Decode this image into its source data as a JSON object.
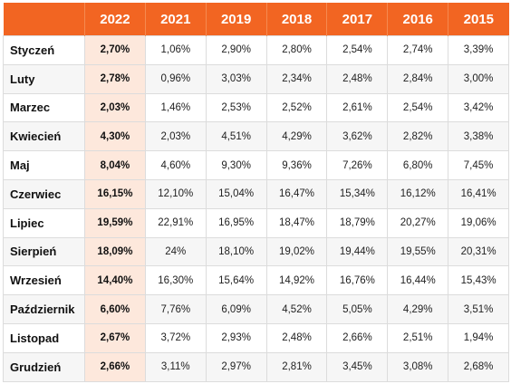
{
  "table": {
    "headers": [
      "",
      "2022",
      "2021",
      "2019",
      "2018",
      "2017",
      "2016",
      "2015"
    ],
    "rows": [
      {
        "month": "Styczeń",
        "values": [
          "2,70%",
          "1,06%",
          "2,90%",
          "2,80%",
          "2,54%",
          "2,74%",
          "3,39%"
        ]
      },
      {
        "month": "Luty",
        "values": [
          "2,78%",
          "0,96%",
          "3,03%",
          "2,34%",
          "2,48%",
          "2,84%",
          "3,00%"
        ]
      },
      {
        "month": "Marzec",
        "values": [
          "2,03%",
          "1,46%",
          "2,53%",
          "2,52%",
          "2,61%",
          "2,54%",
          "3,42%"
        ]
      },
      {
        "month": "Kwiecień",
        "values": [
          "4,30%",
          "2,03%",
          "4,51%",
          "4,29%",
          "3,62%",
          "2,82%",
          "3,38%"
        ]
      },
      {
        "month": "Maj",
        "values": [
          "8,04%",
          "4,60%",
          "9,30%",
          "9,36%",
          "7,26%",
          "6,80%",
          "7,45%"
        ]
      },
      {
        "month": "Czerwiec",
        "values": [
          "16,15%",
          "12,10%",
          "15,04%",
          "16,47%",
          "15,34%",
          "16,12%",
          "16,41%"
        ]
      },
      {
        "month": "Lipiec",
        "values": [
          "19,59%",
          "22,91%",
          "16,95%",
          "18,47%",
          "18,79%",
          "20,27%",
          "19,06%"
        ]
      },
      {
        "month": "Sierpień",
        "values": [
          "18,09%",
          "24%",
          "18,10%",
          "19,02%",
          "19,44%",
          "19,55%",
          "20,31%"
        ]
      },
      {
        "month": "Wrzesień",
        "values": [
          "14,40%",
          "16,30%",
          "15,64%",
          "14,92%",
          "16,76%",
          "16,44%",
          "15,43%"
        ]
      },
      {
        "month": "Październik",
        "values": [
          "6,60%",
          "7,76%",
          "6,09%",
          "4,52%",
          "5,05%",
          "4,29%",
          "3,51%"
        ]
      },
      {
        "month": "Listopad",
        "values": [
          "2,67%",
          "3,72%",
          "2,93%",
          "2,48%",
          "2,66%",
          "2,51%",
          "1,94%"
        ]
      },
      {
        "month": "Grudzień",
        "values": [
          "2,66%",
          "3,11%",
          "2,97%",
          "2,81%",
          "3,45%",
          "3,08%",
          "2,68%"
        ]
      }
    ]
  },
  "colors": {
    "header_bg": "#f26522",
    "header_text": "#ffffff",
    "highlight_col_bg": "#fde8dc"
  }
}
